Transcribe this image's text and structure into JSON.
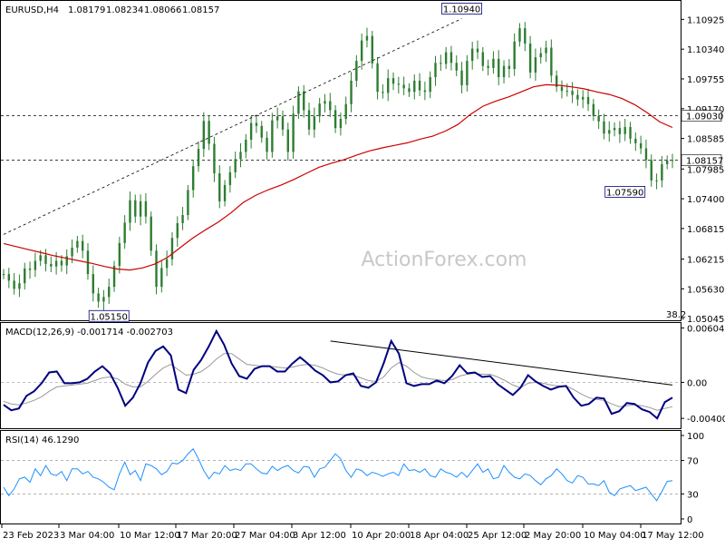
{
  "chart_data": [
    {
      "panel": "price",
      "type": "candlestick",
      "symbol": "EURUSD,H4",
      "ohlc_header": [
        "1.08179",
        "1.08234",
        "1.08066",
        "1.08157"
      ],
      "ylim": [
        1.0503,
        1.1127
      ],
      "y_ticks": [
        "1.10925",
        "1.10340",
        "1.09755",
        "1.09170",
        "1.08585",
        "1.07985",
        "1.07400",
        "1.06815",
        "1.06215",
        "1.05630",
        "1.05045"
      ],
      "close_series": [
        1.0592,
        1.0579,
        1.0563,
        1.0574,
        1.0603,
        1.06,
        1.0618,
        1.0629,
        1.0612,
        1.0607,
        1.0618,
        1.0609,
        1.0627,
        1.0644,
        1.0657,
        1.0638,
        1.0592,
        1.0554,
        1.0538,
        1.0547,
        1.0567,
        1.0608,
        1.0653,
        1.0693,
        1.0737,
        1.0705,
        1.0735,
        1.0705,
        1.0638,
        1.0567,
        1.0604,
        1.0621,
        1.0663,
        1.0692,
        1.0708,
        1.0757,
        1.0804,
        1.0838,
        1.0893,
        1.0848,
        1.079,
        1.0735,
        1.0767,
        1.0792,
        1.0818,
        1.0832,
        1.0856,
        1.0889,
        1.0883,
        1.086,
        1.0832,
        1.0894,
        1.0902,
        1.0876,
        1.0832,
        1.0907,
        1.0951,
        1.0914,
        1.0876,
        1.0902,
        1.0927,
        1.0932,
        1.0914,
        1.0879,
        1.0897,
        1.0926,
        1.0972,
        1.1011,
        1.1051,
        1.106,
        1.1006,
        1.095,
        1.0948,
        1.0977,
        1.0966,
        1.0964,
        1.0957,
        1.095,
        1.0972,
        1.0953,
        1.095,
        1.0979,
        1.1007,
        1.1005,
        1.1028,
        1.1007,
        1.0992,
        1.0963,
        1.1011,
        1.1035,
        1.1028,
        1.1001,
        1.0997,
        1.1015,
        1.0979,
        1.1001,
        1.0995,
        1.1049,
        1.1075,
        1.1045,
        1.0988,
        1.1018,
        1.1026,
        1.1037,
        1.0982,
        1.096,
        1.0952,
        1.0952,
        1.0944,
        1.0935,
        1.094,
        1.0926,
        1.0903,
        1.0892,
        1.0868,
        1.0875,
        1.0879,
        1.0867,
        1.0881,
        1.0858,
        1.0849,
        1.0839,
        1.0816,
        1.0776,
        1.0776,
        1.0808,
        1.0815,
        1.0816
      ],
      "ma_series": [
        1.0652,
        1.0646,
        1.064,
        1.0634,
        1.0628,
        1.0623,
        1.0618,
        1.0613,
        1.0607,
        1.0602,
        1.06,
        1.0604,
        1.0612,
        1.0625,
        1.0644,
        1.0663,
        1.0679,
        1.0694,
        1.0712,
        1.0733,
        1.0747,
        1.0758,
        1.0767,
        1.0778,
        1.079,
        1.0802,
        1.081,
        1.0817,
        1.0826,
        1.0834,
        1.084,
        1.0845,
        1.085,
        1.0857,
        1.0863,
        1.0873,
        1.0886,
        1.0906,
        1.0922,
        1.0932,
        1.094,
        1.095,
        1.096,
        1.0964,
        1.0963,
        1.096,
        1.0956,
        1.095,
        1.0945,
        1.0937,
        1.0925,
        1.0909,
        1.0891,
        1.088
      ],
      "close_value": "1.08157",
      "price_labels": [
        {
          "text": "1.09030",
          "value": 1.0903,
          "style": "dashed-level"
        },
        {
          "text": "1.08157",
          "value": 1.08157,
          "style": "current"
        }
      ],
      "annotations": [
        {
          "text": "1.10940",
          "value": 1.1094
        },
        {
          "text": "1.05150",
          "value": 1.0515
        },
        {
          "text": "1.07590",
          "value": 1.0759
        },
        {
          "text": "38.2",
          "value": null
        }
      ],
      "trendline": {
        "from": [
          0,
          1.067
        ],
        "to": [
          87,
          1.1094
        ]
      },
      "horizontal_levels": [
        1.0903,
        1.08157
      ],
      "watermark": "ActionForex.com",
      "colors": {
        "candle": "#2e7d32",
        "ma": "#cc0000",
        "trendline": "#000000",
        "levels": "#000000"
      }
    },
    {
      "panel": "macd",
      "type": "line",
      "label": "MACD(12,26,9) -0.001714 -0.002703",
      "ylim": [
        -0.005,
        0.0065
      ],
      "y_ticks": [
        "0.006049",
        "0.00",
        "-0.004005"
      ],
      "series": [
        {
          "values": [
            -0.0025,
            -0.0031,
            -0.0029,
            -0.0015,
            -0.001,
            -0.0001,
            0.0011,
            0.0012,
            -0.0001,
            -0.0001,
            0.0,
            0.0004,
            0.0012,
            0.0018,
            0.001,
            -0.0006,
            -0.0026,
            -0.0017,
            -0.0001,
            0.0022,
            0.0035,
            0.004,
            0.003,
            -0.0008,
            -0.0012,
            0.0014,
            0.0025,
            0.004,
            0.0057,
            0.0042,
            0.0021,
            0.0007,
            0.0004,
            0.0015,
            0.0018,
            0.0018,
            0.0012,
            0.0012,
            0.0021,
            0.0028,
            0.0021,
            0.0013,
            0.0008,
            0.0,
            0.0001,
            0.0008,
            0.001,
            -0.0004,
            -0.0006,
            0.0,
            0.0021,
            0.0046,
            0.0032,
            -0.0001,
            -0.0004,
            -0.0002,
            -0.0002,
            0.0002,
            -0.0001,
            0.0007,
            0.0019,
            0.001,
            0.0011,
            0.0006,
            0.0007,
            -0.0002,
            -0.0008,
            -0.0014,
            -0.0006,
            0.0008,
            0.0001,
            -0.0004,
            -0.0008,
            -0.0005,
            -0.0004,
            -0.0017,
            -0.0026,
            -0.0024,
            -0.0017,
            -0.0018,
            -0.0035,
            -0.0032,
            -0.0023,
            -0.0024,
            -0.003,
            -0.0033,
            -0.004,
            -0.0022,
            -0.0017
          ],
          "color": "#000080"
        },
        {
          "values": [
            -0.0021,
            -0.0024,
            -0.0025,
            -0.0023,
            -0.002,
            -0.0016,
            -0.001,
            -0.0005,
            -0.0004,
            -0.0003,
            -0.0002,
            -0.0001,
            0.0002,
            0.0005,
            0.0006,
            0.0004,
            -0.0002,
            -0.0005,
            -0.0005,
            0.0001,
            0.0009,
            0.0016,
            0.002,
            0.0014,
            0.0008,
            0.0009,
            0.0012,
            0.0018,
            0.0026,
            0.0032,
            0.0032,
            0.0026,
            0.002,
            0.0019,
            0.0018,
            0.0018,
            0.0017,
            0.0016,
            0.0017,
            0.0019,
            0.002,
            0.0019,
            0.0016,
            0.0012,
            0.0009,
            0.0008,
            0.0008,
            0.0005,
            0.0002,
            0.0001,
            0.0006,
            0.0016,
            0.0022,
            0.0018,
            0.0011,
            0.0006,
            0.0004,
            0.0003,
            0.0002,
            0.0003,
            0.0007,
            0.0009,
            0.001,
            0.0009,
            0.0009,
            0.0006,
            0.0002,
            -0.0003,
            -0.0006,
            -0.0001,
            0.0,
            -0.0001,
            -0.0003,
            -0.0004,
            -0.0004,
            -0.0008,
            -0.0013,
            -0.0017,
            -0.0019,
            -0.002,
            -0.0024,
            -0.0027,
            -0.0026,
            -0.0025,
            -0.0026,
            -0.0028,
            -0.0031,
            -0.0029,
            -0.0027
          ],
          "color": "#999999"
        }
      ],
      "trendline": {
        "from": [
          43,
          0.0046
        ],
        "to": [
          88,
          -0.0003
        ]
      }
    },
    {
      "panel": "rsi",
      "type": "line",
      "label": "RSI(14) 46.1290",
      "ylim": [
        0,
        100
      ],
      "y_ticks": [
        "100",
        "70",
        "30",
        "0"
      ],
      "levels": [
        70,
        30
      ],
      "values": [
        38,
        28,
        36,
        48,
        50,
        44,
        60,
        52,
        64,
        54,
        52,
        57,
        46,
        60,
        60,
        54,
        57,
        50,
        48,
        44,
        38,
        35,
        54,
        68,
        53,
        58,
        46,
        66,
        64,
        60,
        53,
        57,
        67,
        66,
        70,
        78,
        84,
        72,
        58,
        48,
        56,
        54,
        64,
        58,
        60,
        58,
        66,
        66,
        60,
        55,
        54,
        63,
        58,
        62,
        64,
        58,
        55,
        63,
        62,
        50,
        60,
        62,
        70,
        78,
        72,
        58,
        50,
        60,
        58,
        52,
        56,
        54,
        51,
        54,
        56,
        52,
        66,
        58,
        59,
        56,
        60,
        52,
        50,
        60,
        56,
        54,
        50,
        56,
        50,
        58,
        66,
        56,
        60,
        48,
        50,
        64,
        56,
        50,
        48,
        54,
        52,
        46,
        41,
        48,
        52,
        60,
        54,
        46,
        43,
        52,
        50,
        42,
        42,
        40,
        46,
        32,
        28,
        36,
        38,
        40,
        34,
        36,
        38,
        30,
        22,
        33,
        45,
        46
      ]
    },
    {
      "panel": "time-axis",
      "type": "axis",
      "x_ticks": [
        "23 Feb 2023",
        "3 Mar 04:00",
        "10 Mar 12:00",
        "17 Mar 20:00",
        "27 Mar 04:00",
        "3 Apr 12:00",
        "10 Apr 20:00",
        "18 Apr 04:00",
        "25 Apr 12:00",
        "2 May 20:00",
        "10 May 04:00",
        "17 May 12:00"
      ]
    }
  ]
}
